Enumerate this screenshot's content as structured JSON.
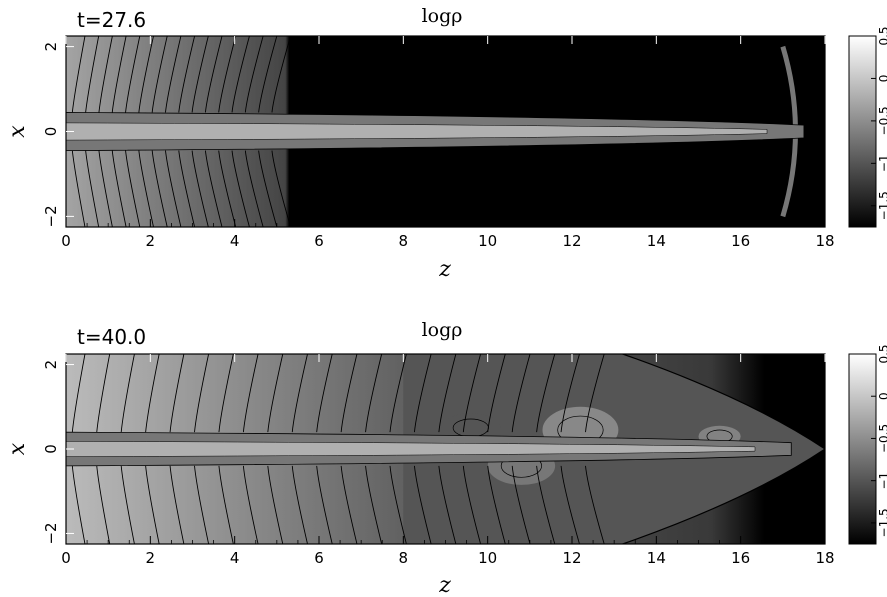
{
  "chart_data": [
    {
      "type": "heatmap",
      "title": "logρ",
      "time_label": "t=27.6",
      "xlabel": "z",
      "ylabel": "x",
      "xlim": [
        0,
        18
      ],
      "ylim": [
        -2.25,
        2.25
      ],
      "xticks": [
        0,
        2,
        4,
        6,
        8,
        10,
        12,
        14,
        16,
        18
      ],
      "yticks": [
        -2,
        0,
        2
      ],
      "colorbar": {
        "range": [
          -1.75,
          0.5
        ],
        "ticks": [
          "-1.5",
          "-1",
          "-0.5",
          "0",
          "0.5"
        ],
        "tick_values": [
          -1.5,
          -1,
          -0.5,
          0,
          0.5
        ],
        "colormap": "grayscale"
      },
      "features": {
        "jet_length": 17.5,
        "jet_half_width": 0.45,
        "cocoon_end": 5.3,
        "ambient_left_value": -0.3
      }
    },
    {
      "type": "heatmap",
      "title": "logρ",
      "time_label": "t=40.0",
      "xlabel": "z",
      "ylabel": "x",
      "xlim": [
        0,
        18
      ],
      "ylim": [
        -2.25,
        2.25
      ],
      "xticks": [
        0,
        2,
        4,
        6,
        8,
        10,
        12,
        14,
        16,
        18
      ],
      "yticks": [
        -2,
        0,
        2
      ],
      "colorbar": {
        "range": [
          -1.75,
          0.5
        ],
        "ticks": [
          "-1.5",
          "-1",
          "-0.5",
          "0",
          "0.5"
        ],
        "tick_values": [
          -1.5,
          -1,
          -0.5,
          0,
          0.5
        ],
        "colormap": "grayscale"
      },
      "features": {
        "jet_length": 17.2,
        "jet_half_width": 0.4,
        "bow_shock_tip": 18.0,
        "ambient_left_value": -0.1
      }
    }
  ],
  "colors": {
    "axes": "#000000",
    "background": "#ffffff",
    "contour": "#000000"
  }
}
